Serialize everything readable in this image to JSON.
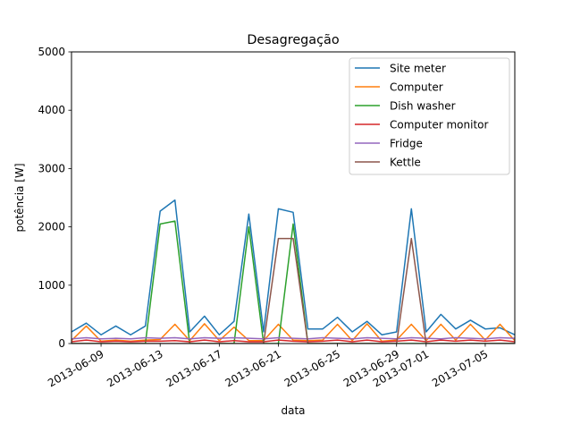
{
  "chart_data": {
    "type": "line",
    "title": "Desagregação",
    "xlabel": "data",
    "ylabel": "potência [W]",
    "xlim": [
      "2013-06-07",
      "2013-07-07"
    ],
    "ylim": [
      0,
      5000
    ],
    "yticks": [
      0,
      1000,
      2000,
      3000,
      4000,
      5000
    ],
    "xticks": [
      "2013-06-09",
      "2013-06-13",
      "2013-06-17",
      "2013-06-21",
      "2013-06-25",
      "2013-06-29",
      "2013-07-01",
      "2013-07-05"
    ],
    "grid": false,
    "legend_position": "top-right",
    "series": [
      {
        "name": "Site meter",
        "color": "#1f77b4",
        "points": [
          [
            "2013-06-07",
            200
          ],
          [
            "2013-06-08",
            350
          ],
          [
            "2013-06-09",
            150
          ],
          [
            "2013-06-10",
            300
          ],
          [
            "2013-06-11",
            150
          ],
          [
            "2013-06-12",
            300
          ],
          [
            "2013-06-13",
            2270
          ],
          [
            "2013-06-14",
            2460
          ],
          [
            "2013-06-15",
            200
          ],
          [
            "2013-06-16",
            470
          ],
          [
            "2013-06-17",
            150
          ],
          [
            "2013-06-18",
            380
          ],
          [
            "2013-06-19",
            2220
          ],
          [
            "2013-06-20",
            200
          ],
          [
            "2013-06-21",
            2310
          ],
          [
            "2013-06-22",
            2250
          ],
          [
            "2013-06-23",
            250
          ],
          [
            "2013-06-24",
            250
          ],
          [
            "2013-06-25",
            450
          ],
          [
            "2013-06-26",
            200
          ],
          [
            "2013-06-27",
            380
          ],
          [
            "2013-06-28",
            150
          ],
          [
            "2013-06-29",
            200
          ],
          [
            "2013-06-30",
            2310
          ],
          [
            "2013-07-01",
            200
          ],
          [
            "2013-07-02",
            500
          ],
          [
            "2013-07-03",
            250
          ],
          [
            "2013-07-04",
            400
          ],
          [
            "2013-07-05",
            250
          ],
          [
            "2013-07-06",
            270
          ],
          [
            "2013-07-07",
            150
          ]
        ]
      },
      {
        "name": "Computer",
        "color": "#ff7f0e",
        "points": [
          [
            "2013-06-07",
            50
          ],
          [
            "2013-06-08",
            300
          ],
          [
            "2013-06-09",
            40
          ],
          [
            "2013-06-10",
            60
          ],
          [
            "2013-06-11",
            40
          ],
          [
            "2013-06-12",
            60
          ],
          [
            "2013-06-13",
            70
          ],
          [
            "2013-06-14",
            330
          ],
          [
            "2013-06-15",
            50
          ],
          [
            "2013-06-16",
            340
          ],
          [
            "2013-06-17",
            50
          ],
          [
            "2013-06-18",
            280
          ],
          [
            "2013-06-19",
            50
          ],
          [
            "2013-06-20",
            50
          ],
          [
            "2013-06-21",
            330
          ],
          [
            "2013-06-22",
            60
          ],
          [
            "2013-06-23",
            50
          ],
          [
            "2013-06-24",
            60
          ],
          [
            "2013-06-25",
            330
          ],
          [
            "2013-06-26",
            50
          ],
          [
            "2013-06-27",
            340
          ],
          [
            "2013-06-28",
            40
          ],
          [
            "2013-06-29",
            60
          ],
          [
            "2013-06-30",
            330
          ],
          [
            "2013-07-01",
            50
          ],
          [
            "2013-07-02",
            330
          ],
          [
            "2013-07-03",
            60
          ],
          [
            "2013-07-04",
            330
          ],
          [
            "2013-07-05",
            60
          ],
          [
            "2013-07-06",
            330
          ],
          [
            "2013-07-07",
            50
          ]
        ]
      },
      {
        "name": "Dish washer",
        "color": "#2ca02c",
        "points": [
          [
            "2013-06-07",
            0
          ],
          [
            "2013-06-08",
            0
          ],
          [
            "2013-06-09",
            0
          ],
          [
            "2013-06-10",
            0
          ],
          [
            "2013-06-11",
            0
          ],
          [
            "2013-06-12",
            0
          ],
          [
            "2013-06-13",
            2050
          ],
          [
            "2013-06-14",
            2100
          ],
          [
            "2013-06-15",
            0
          ],
          [
            "2013-06-16",
            0
          ],
          [
            "2013-06-17",
            0
          ],
          [
            "2013-06-18",
            0
          ],
          [
            "2013-06-19",
            2000
          ],
          [
            "2013-06-20",
            0
          ],
          [
            "2013-06-21",
            0
          ],
          [
            "2013-06-22",
            2050
          ],
          [
            "2013-06-23",
            0
          ],
          [
            "2013-06-24",
            0
          ],
          [
            "2013-06-25",
            0
          ],
          [
            "2013-06-26",
            0
          ],
          [
            "2013-06-27",
            0
          ],
          [
            "2013-06-28",
            0
          ],
          [
            "2013-06-29",
            0
          ],
          [
            "2013-06-30",
            0
          ],
          [
            "2013-07-01",
            0
          ],
          [
            "2013-07-02",
            0
          ],
          [
            "2013-07-03",
            0
          ],
          [
            "2013-07-04",
            0
          ],
          [
            "2013-07-05",
            0
          ],
          [
            "2013-07-06",
            0
          ],
          [
            "2013-07-07",
            0
          ]
        ]
      },
      {
        "name": "Computer monitor",
        "color": "#d62728",
        "points": [
          [
            "2013-06-07",
            30
          ],
          [
            "2013-06-08",
            60
          ],
          [
            "2013-06-09",
            30
          ],
          [
            "2013-06-10",
            40
          ],
          [
            "2013-06-11",
            30
          ],
          [
            "2013-06-12",
            40
          ],
          [
            "2013-06-13",
            40
          ],
          [
            "2013-06-14",
            50
          ],
          [
            "2013-06-15",
            30
          ],
          [
            "2013-06-16",
            60
          ],
          [
            "2013-06-17",
            30
          ],
          [
            "2013-06-18",
            50
          ],
          [
            "2013-06-19",
            30
          ],
          [
            "2013-06-20",
            30
          ],
          [
            "2013-06-21",
            60
          ],
          [
            "2013-06-22",
            40
          ],
          [
            "2013-06-23",
            30
          ],
          [
            "2013-06-24",
            40
          ],
          [
            "2013-06-25",
            60
          ],
          [
            "2013-06-26",
            30
          ],
          [
            "2013-06-27",
            60
          ],
          [
            "2013-06-28",
            30
          ],
          [
            "2013-06-29",
            40
          ],
          [
            "2013-06-30",
            60
          ],
          [
            "2013-07-01",
            30
          ],
          [
            "2013-07-02",
            60
          ],
          [
            "2013-07-03",
            40
          ],
          [
            "2013-07-04",
            60
          ],
          [
            "2013-07-05",
            40
          ],
          [
            "2013-07-06",
            60
          ],
          [
            "2013-07-07",
            30
          ]
        ]
      },
      {
        "name": "Fridge",
        "color": "#9467bd",
        "points": [
          [
            "2013-06-07",
            80
          ],
          [
            "2013-06-08",
            100
          ],
          [
            "2013-06-09",
            80
          ],
          [
            "2013-06-10",
            90
          ],
          [
            "2013-06-11",
            80
          ],
          [
            "2013-06-12",
            100
          ],
          [
            "2013-06-13",
            90
          ],
          [
            "2013-06-14",
            100
          ],
          [
            "2013-06-15",
            80
          ],
          [
            "2013-06-16",
            100
          ],
          [
            "2013-06-17",
            90
          ],
          [
            "2013-06-18",
            100
          ],
          [
            "2013-06-19",
            90
          ],
          [
            "2013-06-20",
            80
          ],
          [
            "2013-06-21",
            100
          ],
          [
            "2013-06-22",
            90
          ],
          [
            "2013-06-23",
            80
          ],
          [
            "2013-06-24",
            100
          ],
          [
            "2013-06-25",
            90
          ],
          [
            "2013-06-26",
            80
          ],
          [
            "2013-06-27",
            100
          ],
          [
            "2013-06-28",
            90
          ],
          [
            "2013-06-29",
            80
          ],
          [
            "2013-06-30",
            100
          ],
          [
            "2013-07-01",
            90
          ],
          [
            "2013-07-02",
            80
          ],
          [
            "2013-07-03",
            100
          ],
          [
            "2013-07-04",
            90
          ],
          [
            "2013-07-05",
            80
          ],
          [
            "2013-07-06",
            100
          ],
          [
            "2013-07-07",
            90
          ]
        ]
      },
      {
        "name": "Kettle",
        "color": "#8c564b",
        "points": [
          [
            "2013-06-07",
            0
          ],
          [
            "2013-06-08",
            0
          ],
          [
            "2013-06-09",
            0
          ],
          [
            "2013-06-10",
            0
          ],
          [
            "2013-06-11",
            0
          ],
          [
            "2013-06-12",
            0
          ],
          [
            "2013-06-13",
            0
          ],
          [
            "2013-06-14",
            0
          ],
          [
            "2013-06-15",
            0
          ],
          [
            "2013-06-16",
            0
          ],
          [
            "2013-06-17",
            0
          ],
          [
            "2013-06-18",
            0
          ],
          [
            "2013-06-19",
            0
          ],
          [
            "2013-06-20",
            0
          ],
          [
            "2013-06-21",
            1800
          ],
          [
            "2013-06-22",
            1800
          ],
          [
            "2013-06-23",
            0
          ],
          [
            "2013-06-24",
            0
          ],
          [
            "2013-06-25",
            0
          ],
          [
            "2013-06-26",
            0
          ],
          [
            "2013-06-27",
            0
          ],
          [
            "2013-06-28",
            0
          ],
          [
            "2013-06-29",
            0
          ],
          [
            "2013-06-30",
            1800
          ],
          [
            "2013-07-01",
            0
          ],
          [
            "2013-07-02",
            0
          ],
          [
            "2013-07-03",
            0
          ],
          [
            "2013-07-04",
            0
          ],
          [
            "2013-07-05",
            0
          ],
          [
            "2013-07-06",
            0
          ],
          [
            "2013-07-07",
            0
          ]
        ]
      }
    ]
  }
}
